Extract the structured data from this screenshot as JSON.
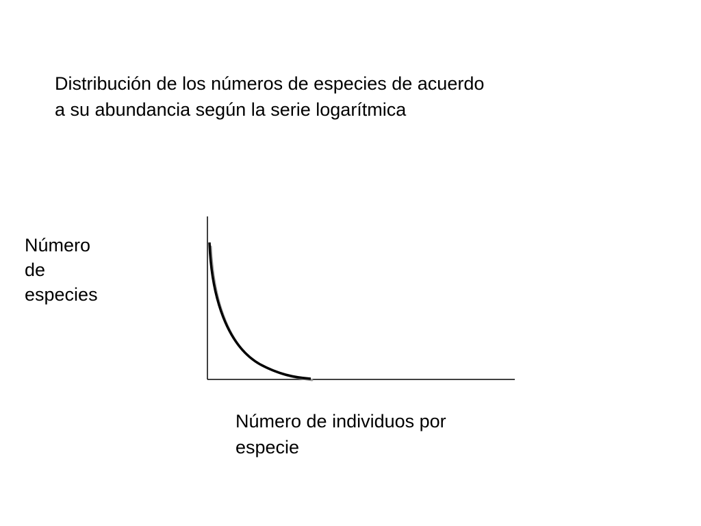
{
  "title": {
    "line1": "Distribución de los números de especies de acuerdo",
    "line2": "a su abundancia según la serie logarítmica"
  },
  "y_axis_label": {
    "line1": "Número",
    "line2": "de",
    "line3": "especies"
  },
  "x_axis_label": {
    "line1": "Número de individuos por",
    "line2": "especie"
  },
  "colors": {
    "text": "#000000",
    "axis": "#000000",
    "curve": "#000000",
    "curve_shadow": "#9a9a9a",
    "background": "#ffffff"
  },
  "curve_shape": "decreasing-logarithmic-series"
}
